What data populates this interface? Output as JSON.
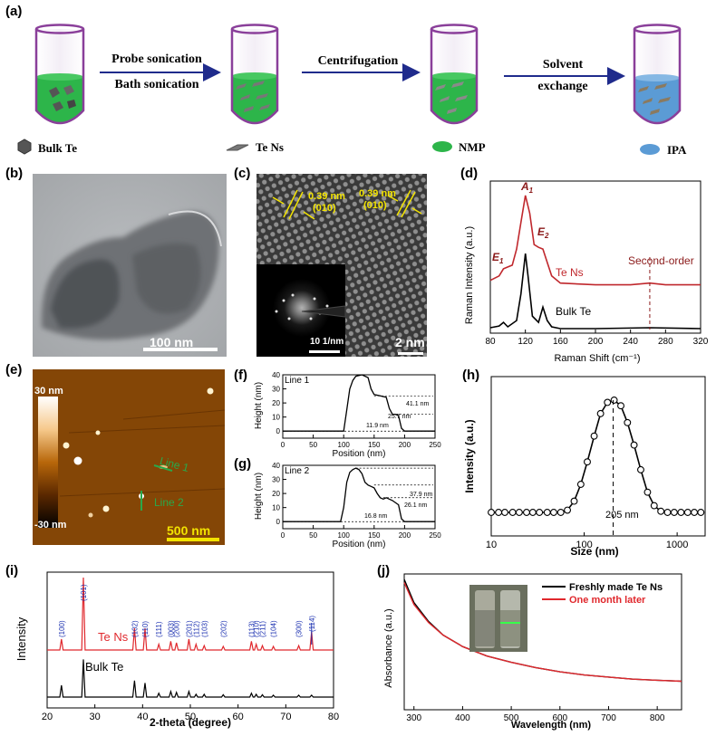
{
  "panels": {
    "a": {
      "label": "(a)",
      "step1_line1": "Probe sonication",
      "step1_line2": "Bath sonication",
      "step2": "Centrifugation",
      "step3_line1": "Solvent",
      "step3_line2": "exchange",
      "legend": [
        "Bulk Te",
        "Te Ns",
        "NMP",
        "IPA"
      ],
      "colors": {
        "nmp": "#2db54a",
        "ipa": "#5b9bd5",
        "tube": "#8a3f9a",
        "arrow": "#1f2b8c"
      }
    },
    "b": {
      "label": "(b)",
      "scalebar": "100 nm"
    },
    "c": {
      "label": "(c)",
      "d1": "0.39 nm",
      "h1": "(010)",
      "d2": "0.39 nm",
      "h2": "(010)",
      "inset_scale": "10 1/nm",
      "scalebar": "2 nm"
    },
    "d": {
      "label": "(d)",
      "peaks": [
        "E",
        "A",
        "E"
      ],
      "peak_subs": [
        "1",
        "1",
        "2"
      ],
      "second_order": "Second-order",
      "series_te_ns": "Te Ns",
      "series_bulk": "Bulk Te",
      "colors": {
        "te_ns": "#c0282d",
        "bulk": "#000000"
      }
    },
    "e": {
      "label": "(e)",
      "cb_top": "30 nm",
      "cb_bottom": "-30 nm",
      "line1": "Line 1",
      "line2": "Line 2",
      "scalebar": "500 nm"
    },
    "f": {
      "label": "(f)",
      "line": "Line 1",
      "a1": "41.1 nm",
      "a2": "25.7 nm",
      "a3": "11.9 nm"
    },
    "g": {
      "label": "(g)",
      "line": "Line 2",
      "a1": "37.9 nm",
      "a2": "26.1 nm",
      "a3": "16.8 nm"
    },
    "h": {
      "label": "(h)",
      "annot": "205 nm"
    },
    "i": {
      "label": "(i)",
      "series_te_ns": "Te Ns",
      "series_bulk": "Bulk Te",
      "peaks": [
        "(100)",
        "(101)",
        "(102)",
        "(110)",
        "(111)",
        "(003)",
        "(200)",
        "(201)",
        "(112)",
        "(103)",
        "(202)",
        "(113)",
        "(210)",
        "(211)",
        "(104)",
        "(300)",
        "(114)"
      ]
    },
    "j": {
      "label": "(j)",
      "legend1": "Freshly made Te Ns",
      "legend2": "One month later"
    }
  },
  "chart_data": [
    {
      "panel": "d",
      "type": "line",
      "xlabel": "Raman Shift (cm⁻¹)",
      "ylabel": "Raman Intensity (a.u.)",
      "xlim": [
        80,
        320
      ],
      "xticks": [
        80,
        120,
        160,
        200,
        240,
        280,
        320
      ],
      "series": [
        {
          "name": "Te Ns",
          "x": [
            80,
            90,
            95,
            100,
            105,
            110,
            115,
            120,
            125,
            130,
            135,
            140,
            145,
            150,
            160,
            200,
            240,
            262,
            280,
            320
          ],
          "y": [
            0.55,
            0.6,
            0.68,
            0.7,
            0.72,
            0.9,
            1.2,
            1.5,
            1.3,
            0.95,
            0.92,
            0.9,
            0.75,
            0.6,
            0.52,
            0.5,
            0.5,
            0.52,
            0.5,
            0.5
          ]
        },
        {
          "name": "Bulk Te",
          "x": [
            80,
            90,
            95,
            100,
            110,
            115,
            120,
            123,
            128,
            135,
            140,
            145,
            150,
            160,
            200,
            262,
            320
          ],
          "y": [
            0.02,
            0.04,
            0.08,
            0.03,
            0.1,
            0.4,
            0.85,
            0.6,
            0.15,
            0.08,
            0.25,
            0.1,
            0.03,
            0.01,
            0.01,
            0.02,
            0.01
          ]
        }
      ],
      "annotations": {
        "second_order_x": 262
      }
    },
    {
      "panel": "f",
      "type": "line",
      "xlabel": "Position (nm)",
      "ylabel": "Height (nm)",
      "xlim": [
        0,
        250
      ],
      "ylim": [
        -5,
        40
      ],
      "xticks": [
        0,
        50,
        100,
        150,
        200,
        250
      ],
      "yticks": [
        0,
        10,
        20,
        30,
        40
      ],
      "x": [
        0,
        100,
        105,
        110,
        115,
        120,
        130,
        140,
        145,
        150,
        160,
        170,
        175,
        180,
        185,
        190,
        195,
        200,
        250
      ],
      "y": [
        0,
        0,
        15,
        30,
        36,
        39,
        40,
        38,
        30,
        26,
        25,
        24,
        16,
        12,
        12,
        11,
        2,
        0,
        0
      ]
    },
    {
      "panel": "g",
      "type": "line",
      "xlabel": "Position (nm)",
      "ylabel": "Height (nm)",
      "xlim": [
        0,
        250
      ],
      "ylim": [
        -5,
        40
      ],
      "xticks": [
        0,
        50,
        100,
        150,
        200,
        250
      ],
      "yticks": [
        0,
        10,
        20,
        30,
        40
      ],
      "x": [
        0,
        95,
        100,
        105,
        110,
        115,
        120,
        125,
        130,
        135,
        140,
        145,
        150,
        155,
        160,
        165,
        170,
        180,
        190,
        195,
        200,
        250
      ],
      "y": [
        0,
        0,
        10,
        28,
        35,
        37,
        38,
        37,
        34,
        28,
        26,
        25,
        24,
        20,
        17,
        16,
        17,
        15,
        12,
        2,
        0,
        0
      ]
    },
    {
      "panel": "h",
      "type": "scatter",
      "xlabel": "Size (nm)",
      "ylabel": "Intensity (a.u.)",
      "xscale": "log",
      "xlim": [
        10,
        2000
      ],
      "xticks": [
        10,
        100,
        1000
      ],
      "x": [
        10,
        12,
        14,
        17,
        20,
        24,
        28,
        33,
        40,
        47,
        56,
        66,
        78,
        92,
        108,
        128,
        150,
        178,
        210,
        248,
        292,
        344,
        406,
        480,
        566,
        668,
        788,
        930,
        1100,
        1300,
        1530,
        1800
      ],
      "y": [
        0,
        0,
        0,
        0,
        0,
        0,
        0,
        0,
        0,
        0,
        0,
        0.02,
        0.1,
        0.25,
        0.45,
        0.68,
        0.88,
        0.98,
        1.0,
        0.95,
        0.8,
        0.6,
        0.38,
        0.18,
        0.06,
        0.01,
        0,
        0,
        0,
        0,
        0,
        0
      ],
      "peak_x": 205
    },
    {
      "panel": "i",
      "type": "line",
      "xlabel": "2-theta (degree)",
      "ylabel": "Intensity",
      "xlim": [
        20,
        80
      ],
      "xticks": [
        20,
        30,
        40,
        50,
        60,
        70,
        80
      ],
      "peak_positions": [
        23.0,
        27.6,
        38.3,
        40.5,
        43.4,
        45.9,
        47.1,
        49.7,
        51.2,
        52.9,
        56.9,
        62.8,
        63.8,
        65.1,
        67.4,
        72.7,
        75.4
      ],
      "te_ns_heights": [
        0.15,
        1.0,
        0.3,
        0.3,
        0.08,
        0.12,
        0.1,
        0.15,
        0.08,
        0.06,
        0.05,
        0.12,
        0.08,
        0.06,
        0.05,
        0.06,
        0.25
      ],
      "bulk_heights": [
        0.25,
        0.8,
        0.35,
        0.3,
        0.08,
        0.12,
        0.1,
        0.12,
        0.06,
        0.06,
        0.05,
        0.08,
        0.06,
        0.05,
        0.04,
        0.04,
        0.04
      ]
    },
    {
      "panel": "j",
      "type": "line",
      "xlabel": "Wavelength (nm)",
      "ylabel": "Absorbance (a.u.)",
      "xlim": [
        280,
        850
      ],
      "xticks": [
        300,
        400,
        500,
        600,
        700,
        800
      ],
      "series": [
        {
          "name": "Freshly made Te Ns",
          "x": [
            280,
            300,
            330,
            360,
            400,
            450,
            500,
            550,
            600,
            650,
            700,
            750,
            800,
            850
          ],
          "y": [
            1.0,
            0.78,
            0.6,
            0.47,
            0.36,
            0.27,
            0.21,
            0.16,
            0.12,
            0.09,
            0.07,
            0.05,
            0.04,
            0.03
          ]
        },
        {
          "name": "One month later",
          "x": [
            280,
            300,
            330,
            360,
            400,
            450,
            500,
            550,
            600,
            650,
            700,
            750,
            800,
            850
          ],
          "y": [
            0.97,
            0.76,
            0.59,
            0.47,
            0.36,
            0.27,
            0.21,
            0.16,
            0.12,
            0.09,
            0.07,
            0.05,
            0.04,
            0.03
          ]
        }
      ]
    }
  ]
}
